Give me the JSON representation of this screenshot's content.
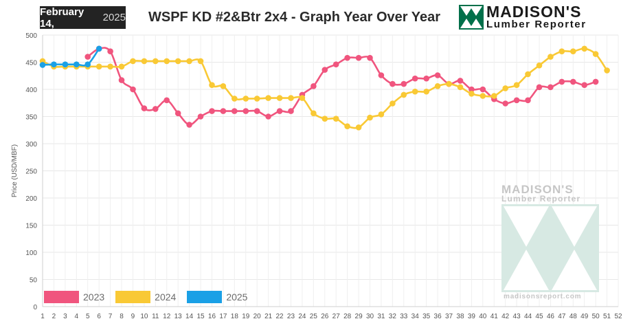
{
  "header": {
    "date_month_day": "February 14,",
    "date_year": "2025",
    "title": "WSPF KD #2&Btr 2x4 - Graph Year Over Year"
  },
  "logo": {
    "name": "MADISON'S",
    "sub": "Lumber Reporter",
    "colors": {
      "green": "#00704a",
      "dark": "#1a1a1a"
    }
  },
  "watermark": {
    "name": "MADISON'S",
    "sub": "Lumber Reporter",
    "url": "madisonsreport.com"
  },
  "chart_data": {
    "type": "line",
    "title": "WSPF KD #2&Btr 2x4 - Graph Year Over Year",
    "xlabel": "",
    "ylabel": "Price  (USD/MBF)",
    "xlim": [
      1,
      52
    ],
    "ylim": [
      0,
      500
    ],
    "x_ticks": [
      1,
      2,
      3,
      4,
      5,
      6,
      7,
      8,
      9,
      10,
      11,
      12,
      13,
      14,
      15,
      16,
      17,
      18,
      19,
      20,
      21,
      22,
      23,
      24,
      25,
      26,
      27,
      28,
      29,
      30,
      31,
      32,
      33,
      34,
      35,
      36,
      37,
      38,
      39,
      40,
      41,
      42,
      43,
      44,
      45,
      46,
      47,
      48,
      49,
      50,
      51,
      52
    ],
    "y_ticks": [
      0,
      50,
      100,
      150,
      200,
      250,
      300,
      350,
      400,
      450,
      500
    ],
    "grid": true,
    "legend_position": "bottom-left",
    "series": [
      {
        "name": "2023",
        "color": "#f0557e",
        "weeks": [
          5,
          6,
          7,
          8,
          9,
          10,
          11,
          12,
          13,
          14,
          15,
          16,
          17,
          18,
          19,
          20,
          21,
          22,
          23,
          24,
          25,
          26,
          27,
          28,
          29,
          30,
          31,
          32,
          33,
          34,
          35,
          36,
          37,
          38,
          39,
          40,
          41,
          42,
          43,
          44,
          45,
          46,
          47,
          48,
          49,
          50
        ],
        "values": [
          460,
          475,
          470,
          417,
          400,
          365,
          364,
          380,
          356,
          335,
          350,
          360,
          360,
          360,
          360,
          360,
          350,
          360,
          360,
          390,
          406,
          436,
          446,
          458,
          458,
          458,
          426,
          410,
          410,
          420,
          420,
          426,
          410,
          416,
          400,
          400,
          382,
          374,
          380,
          380,
          404,
          404,
          414,
          414,
          408,
          414
        ]
      },
      {
        "name": "2024",
        "color": "#f9c935",
        "weeks": [
          1,
          2,
          3,
          4,
          5,
          6,
          7,
          8,
          9,
          10,
          11,
          12,
          13,
          14,
          15,
          16,
          17,
          18,
          19,
          20,
          21,
          22,
          23,
          24,
          25,
          26,
          27,
          28,
          29,
          30,
          31,
          32,
          33,
          34,
          35,
          36,
          37,
          38,
          39,
          40,
          41,
          42,
          43,
          44,
          45,
          46,
          47,
          48,
          49,
          50,
          51
        ],
        "values": [
          452,
          442,
          442,
          442,
          442,
          442,
          442,
          442,
          452,
          452,
          452,
          452,
          452,
          452,
          452,
          408,
          406,
          383,
          383,
          383,
          384,
          384,
          384,
          384,
          356,
          346,
          346,
          332,
          330,
          348,
          354,
          374,
          390,
          396,
          396,
          406,
          410,
          404,
          392,
          388,
          388,
          402,
          408,
          428,
          444,
          460,
          470,
          470,
          475,
          465,
          435
        ]
      },
      {
        "name": "2025",
        "color": "#1aa0e6",
        "weeks": [
          1,
          2,
          3,
          4,
          5,
          6
        ],
        "values": [
          445,
          446,
          446,
          446,
          446,
          475
        ]
      }
    ]
  }
}
